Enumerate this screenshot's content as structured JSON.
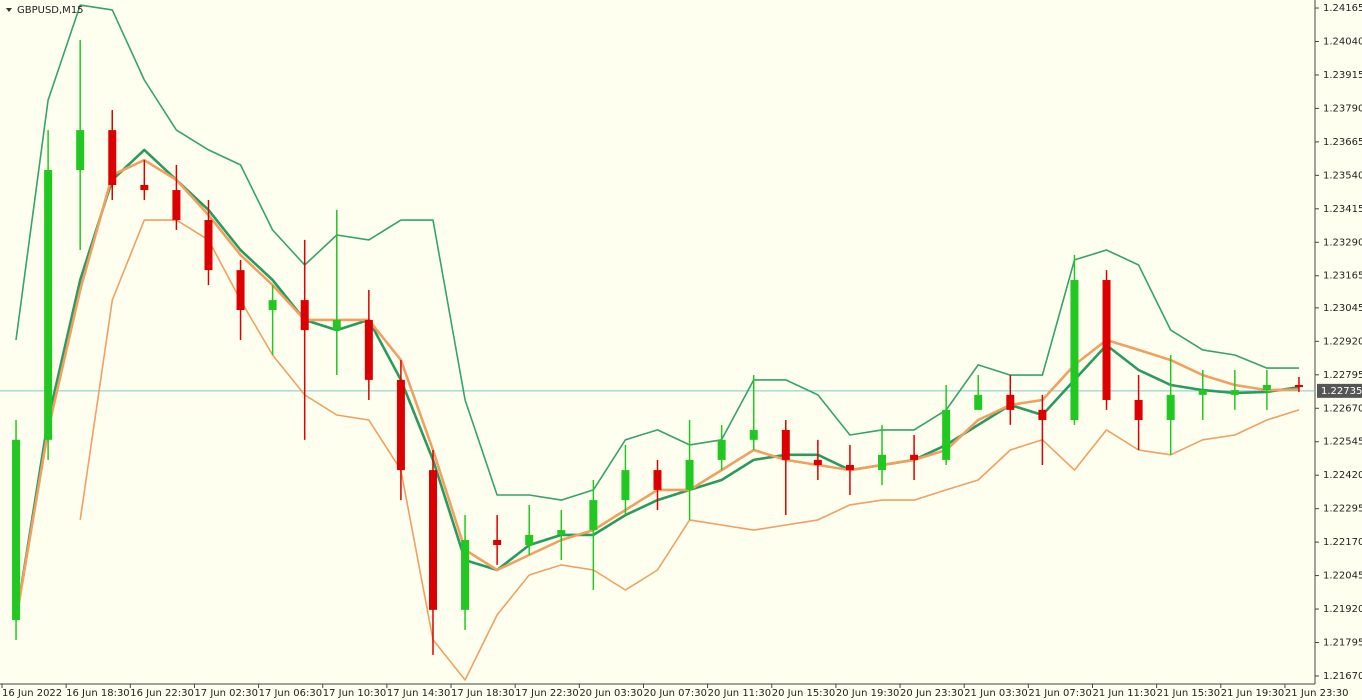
{
  "chart_data": {
    "type": "candlestick",
    "title": "GBPUSD,M15",
    "categories": [
      "16 Jun 2022",
      null,
      "16 Jun 18:30",
      null,
      "16 Jun 22:30",
      null,
      "17 Jun 02:30",
      null,
      "17 Jun 06:30",
      null,
      "17 Jun 10:30",
      null,
      "17 Jun 14:30",
      null,
      "17 Jun 18:30",
      null,
      "17 Jun 22:30",
      null,
      "20 Jun 03:30",
      null,
      "20 Jun 07:30",
      null,
      "20 Jun 11:30",
      null,
      "20 Jun 15:30",
      null,
      "20 Jun 19:30",
      null,
      "20 Jun 23:30",
      null,
      "21 Jun 03:30",
      null,
      "21 Jun 07:30",
      null,
      "21 Jun 11:30",
      null,
      "21 Jun 15:30",
      null,
      "21 Jun 19:30",
      null,
      "21 Jun 23:30"
    ],
    "open": [
      1.21879,
      1.22552,
      1.2356,
      1.23709,
      1.23504,
      1.23485,
      1.23373,
      1.23186,
      1.23037,
      1.23074,
      1.22962,
      1.23,
      1.22776,
      1.22439,
      1.21917,
      1.22178,
      1.22159,
      1.22197,
      1.22215,
      1.22327,
      1.22439,
      1.22365,
      1.22477,
      1.22552,
      1.22589,
      1.22477,
      1.22458,
      1.22439,
      1.22496,
      1.22477,
      1.22664,
      1.2272,
      1.22664,
      1.22626,
      1.23149,
      1.22701,
      1.22626,
      1.2272,
      1.2272,
      1.22738,
      1.22757
    ],
    "high": [
      1.22626,
      1.23709,
      1.24046,
      1.23784,
      1.23597,
      1.23579,
      1.23448,
      1.23224,
      1.2313,
      1.23299,
      1.23411,
      1.23112,
      1.2285,
      1.22514,
      1.22271,
      1.22271,
      1.22309,
      1.2229,
      1.22402,
      1.22533,
      1.22477,
      1.22626,
      1.22608,
      1.22794,
      1.22626,
      1.22552,
      1.22533,
      1.22608,
      1.2257,
      1.22757,
      1.22794,
      1.22794,
      1.2272,
      1.23243,
      1.23186,
      1.22794,
      1.22869,
      1.22813,
      1.22813,
      1.22813,
      1.22787
    ],
    "low": [
      1.21805,
      1.22477,
      1.23261,
      1.23448,
      1.23448,
      1.23336,
      1.2313,
      1.22925,
      1.22869,
      1.22552,
      1.22794,
      1.22701,
      1.22327,
      1.21749,
      1.21842,
      1.22085,
      1.22122,
      1.22103,
      1.21991,
      1.22271,
      1.2229,
      1.22253,
      1.22439,
      1.22514,
      1.22271,
      1.22402,
      1.22346,
      1.22383,
      1.22402,
      1.22458,
      1.22664,
      1.22608,
      1.22458,
      1.22608,
      1.22664,
      1.22514,
      1.22496,
      1.22626,
      1.22664,
      1.22664,
      1.22731
    ],
    "close": [
      1.22552,
      1.2356,
      1.23709,
      1.23504,
      1.23485,
      1.23373,
      1.23186,
      1.23037,
      1.23074,
      1.22962,
      1.23,
      1.22776,
      1.22439,
      1.21917,
      1.22178,
      1.22159,
      1.22197,
      1.22215,
      1.22327,
      1.22439,
      1.22365,
      1.22477,
      1.22552,
      1.22589,
      1.22477,
      1.22458,
      1.22439,
      1.22496,
      1.22477,
      1.22664,
      1.2272,
      1.22664,
      1.22626,
      1.23149,
      1.22701,
      1.22626,
      1.2272,
      1.22738,
      1.22738,
      1.22757,
      1.22749
    ],
    "up_color": "#22c822",
    "down_color": "#dd0000",
    "lines": [
      {
        "color": "#34a468",
        "values": [
          1.22925,
          1.23821,
          1.24176,
          1.24158,
          1.23896,
          1.23709,
          1.23635,
          1.23579,
          1.23336,
          1.23205,
          1.23317,
          1.23299,
          1.23373,
          1.23373,
          1.22701,
          1.22346,
          1.22346,
          1.22327,
          1.22365,
          1.22552,
          1.22589,
          1.22533,
          1.22552,
          1.22776,
          1.22776,
          1.2272,
          1.2257,
          1.22589,
          1.22589,
          1.22664,
          1.22832,
          1.22794,
          1.22794,
          1.23224,
          1.23261,
          1.23205,
          1.22962,
          1.22888,
          1.22869,
          1.2282,
          1.2282
        ]
      },
      {
        "color": "#2a9a60",
        "values": [
          1.21879,
          1.22626,
          1.23149,
          1.23523,
          1.23635,
          1.23523,
          1.23411,
          1.23261,
          1.23149,
          1.23,
          1.22962,
          1.23,
          1.22776,
          1.22477,
          1.22103,
          1.22066,
          1.22159,
          1.22197,
          1.22197,
          1.22271,
          1.22327,
          1.22365,
          1.22402,
          1.22477,
          1.22496,
          1.22496,
          1.22439,
          1.22458,
          1.22477,
          1.22533,
          1.22608,
          1.22682,
          1.22645,
          1.22776,
          1.22906,
          1.22813,
          1.22757,
          1.22738,
          1.22727,
          1.22731,
          1.22749
        ]
      },
      {
        "color": "#f0a060",
        "values": [
          1.21879,
          1.22589,
          1.23112,
          1.23541,
          1.23597,
          1.23523,
          1.23392,
          1.23243,
          1.2313,
          1.23,
          1.23,
          1.23,
          1.2285,
          1.22514,
          1.22141,
          1.22066,
          1.22122,
          1.22178,
          1.22215,
          1.2229,
          1.22365,
          1.22365,
          1.22439,
          1.22514,
          1.22477,
          1.22458,
          1.22439,
          1.22458,
          1.22477,
          1.22514,
          1.22626,
          1.22682,
          1.22701,
          1.22832,
          1.22925,
          1.22888,
          1.2285,
          1.22794,
          1.22757,
          1.22738,
          1.2274
        ]
      },
      {
        "color": "#f0a060",
        "values": [
          null,
          null,
          1.22253,
          1.23074,
          1.23373,
          1.23373,
          1.23299,
          1.23074,
          1.22869,
          1.2272,
          1.22645,
          1.22626,
          1.22439,
          1.21805,
          1.21655,
          1.21898,
          1.22047,
          1.22085,
          1.22066,
          1.21991,
          1.22066,
          1.22253,
          1.22234,
          1.22215,
          1.22234,
          1.22253,
          1.22309,
          1.22327,
          1.22327,
          1.22365,
          1.22402,
          1.22514,
          1.22552,
          1.22439,
          1.22589,
          1.22514,
          1.22496,
          1.22552,
          1.2257,
          1.22626,
          1.22664
        ]
      }
    ],
    "current_price": 1.22735,
    "current_price_color": "#7fc8c8",
    "ylim": [
      1.2164,
      1.24195
    ],
    "yticks": [
      1.24165,
      {
        "value": 1.2404,
        "label": "1.24040"
      },
      1.23915,
      {
        "value": 1.2379,
        "label": "1.23790"
      },
      1.23665,
      {
        "value": 1.2354,
        "label": "1.23540"
      },
      1.23415,
      {
        "value": 1.2329,
        "label": "1.23290"
      },
      1.23165,
      1.23045,
      {
        "value": 1.2292,
        "label": "1.22920"
      },
      1.22795,
      {
        "value": 1.2267,
        "label": "1.22670"
      },
      1.22545,
      {
        "value": 1.2242,
        "label": "1.22420"
      },
      1.22295,
      {
        "value": 1.2217,
        "label": "1.22170"
      },
      1.22045,
      {
        "value": 1.2192,
        "label": "1.21920"
      },
      1.21795,
      {
        "value": 1.2167,
        "label": "1.21670"
      }
    ]
  }
}
